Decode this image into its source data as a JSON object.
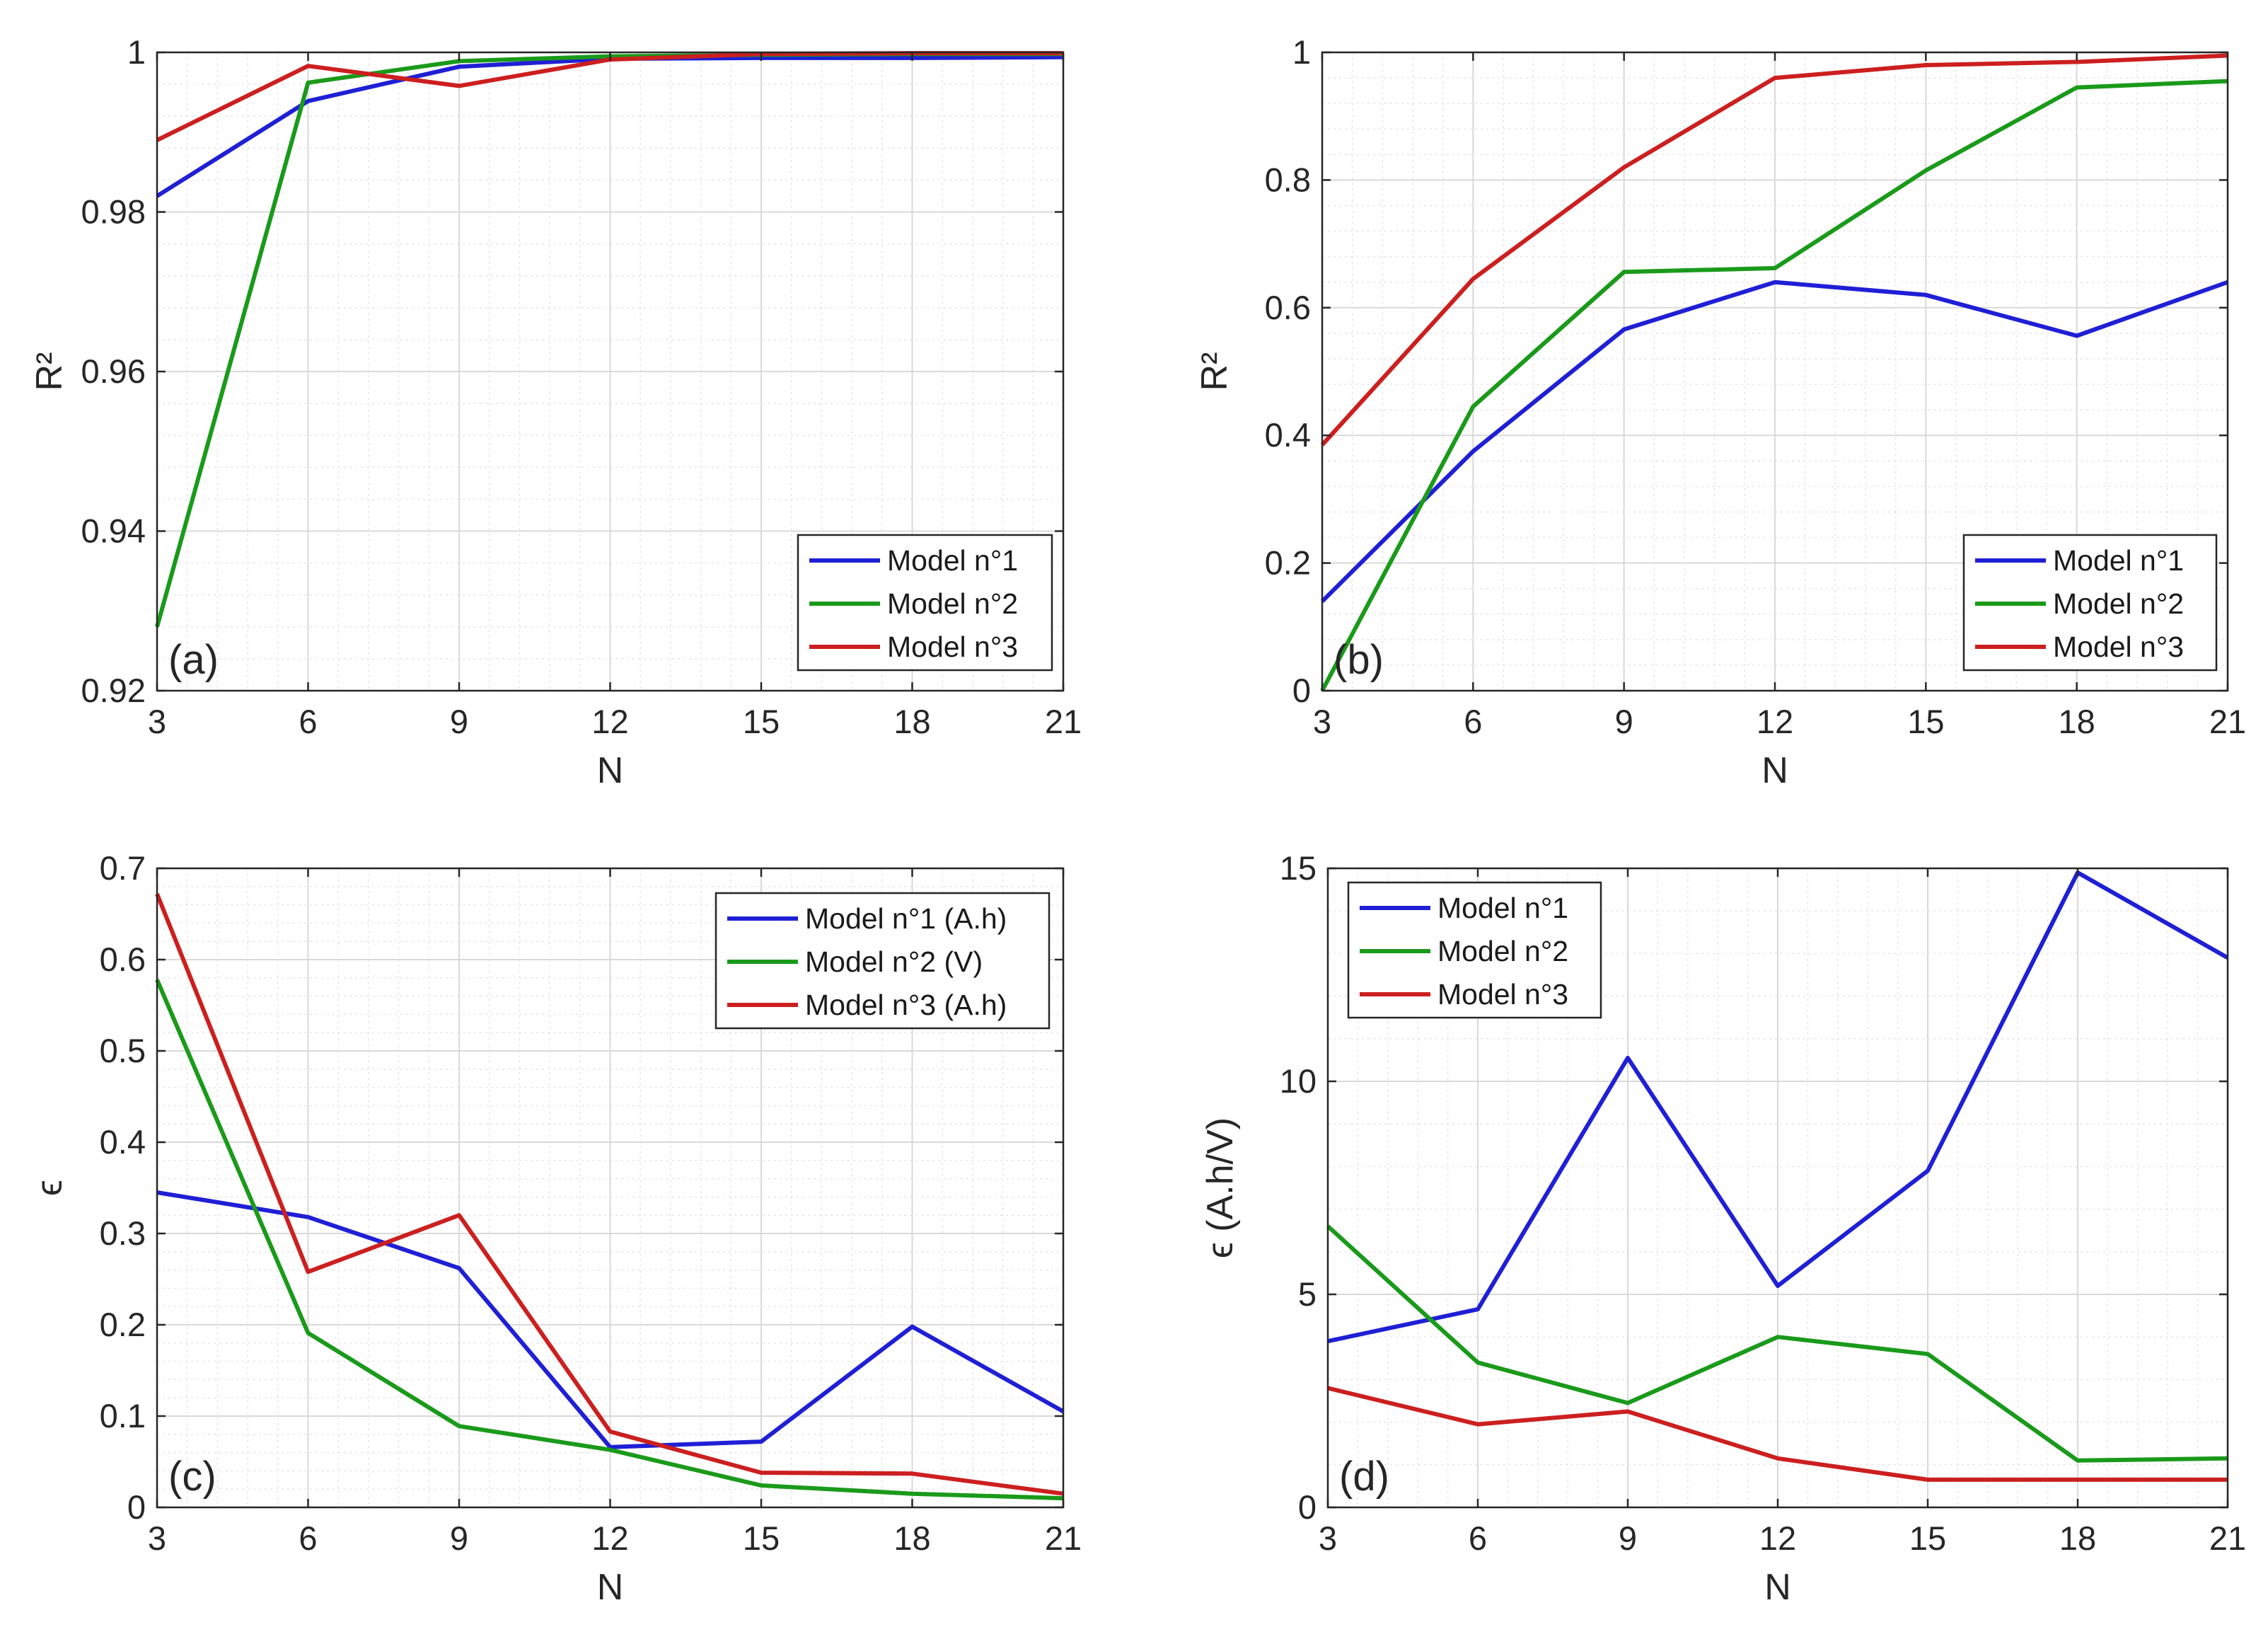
{
  "chart_data": [
    {
      "id": "a",
      "type": "line",
      "panel_label": "(a)",
      "xlabel": "N",
      "ylabel": "R²",
      "xlim": [
        3,
        21
      ],
      "ylim": [
        0.92,
        1.0
      ],
      "xticks": [
        3,
        6,
        9,
        12,
        15,
        18,
        21
      ],
      "xtick_labels": [
        "3",
        "6",
        "9",
        "12",
        "15",
        "18",
        "21"
      ],
      "yticks": [
        0.92,
        0.94,
        0.96,
        0.98,
        1.0
      ],
      "ytick_labels": [
        "0.92",
        "0.94",
        "0.96",
        "0.98",
        "1"
      ],
      "grid": true,
      "minor_grid": true,
      "legend_position": "bottom-right",
      "x": [
        3,
        6,
        9,
        12,
        15,
        18,
        21
      ],
      "series": [
        {
          "name": "Model n°1",
          "color": "#1f1fd6",
          "values": [
            0.982,
            0.9939,
            0.9982,
            0.9992,
            0.9993,
            0.9993,
            0.9994
          ]
        },
        {
          "name": "Model n°2",
          "color": "#1a9a1a",
          "values": [
            0.928,
            0.9962,
            0.9989,
            0.9995,
            0.9997,
            0.9998,
            0.9998
          ]
        },
        {
          "name": "Model n°3",
          "color": "#cc1f1f",
          "values": [
            0.989,
            0.9983,
            0.9958,
            0.9991,
            0.9998,
            0.9999,
            0.9999
          ]
        }
      ]
    },
    {
      "id": "b",
      "type": "line",
      "panel_label": "(b)",
      "xlabel": "N",
      "ylabel": "R²",
      "xlim": [
        3,
        21
      ],
      "ylim": [
        0,
        1
      ],
      "xticks": [
        3,
        6,
        9,
        12,
        15,
        18,
        21
      ],
      "xtick_labels": [
        "3",
        "6",
        "9",
        "12",
        "15",
        "18",
        "21"
      ],
      "yticks": [
        0,
        0.2,
        0.4,
        0.6,
        0.8,
        1
      ],
      "ytick_labels": [
        "0",
        "0.2",
        "0.4",
        "0.6",
        "0.8",
        "1"
      ],
      "grid": true,
      "minor_grid": true,
      "legend_position": "bottom-right",
      "x": [
        3,
        6,
        9,
        12,
        15,
        18,
        21
      ],
      "series": [
        {
          "name": "Model n°1",
          "color": "#1f1fd6",
          "values": [
            0.14,
            0.375,
            0.566,
            0.64,
            0.62,
            0.556,
            0.64
          ]
        },
        {
          "name": "Model n°2",
          "color": "#1a9a1a",
          "values": [
            0.0,
            0.445,
            0.656,
            0.662,
            0.815,
            0.945,
            0.955
          ]
        },
        {
          "name": "Model n°3",
          "color": "#cc1f1f",
          "values": [
            0.385,
            0.645,
            0.82,
            0.96,
            0.98,
            0.985,
            0.995
          ]
        }
      ]
    },
    {
      "id": "c",
      "type": "line",
      "panel_label": "(c)",
      "xlabel": "N",
      "ylabel": "ϵ",
      "xlim": [
        3,
        21
      ],
      "ylim": [
        0,
        0.7
      ],
      "xticks": [
        3,
        6,
        9,
        12,
        15,
        18,
        21
      ],
      "xtick_labels": [
        "3",
        "6",
        "9",
        "12",
        "15",
        "18",
        "21"
      ],
      "yticks": [
        0,
        0.1,
        0.2,
        0.3,
        0.4,
        0.5,
        0.6,
        0.7
      ],
      "ytick_labels": [
        "0",
        "0.1",
        "0.2",
        "0.3",
        "0.4",
        "0.5",
        "0.6",
        "0.7"
      ],
      "grid": true,
      "minor_grid": true,
      "legend_position": "top-right",
      "x": [
        3,
        6,
        9,
        12,
        15,
        18,
        21
      ],
      "series": [
        {
          "name": "Model n°1 (A.h)",
          "color": "#1f1fd6",
          "values": [
            0.345,
            0.318,
            0.262,
            0.066,
            0.072,
            0.198,
            0.105
          ]
        },
        {
          "name": "Model n°2 (V)",
          "color": "#1a9a1a",
          "values": [
            0.578,
            0.191,
            0.089,
            0.063,
            0.024,
            0.015,
            0.01
          ]
        },
        {
          "name": "Model n°3 (A.h)",
          "color": "#cc1f1f",
          "values": [
            0.672,
            0.258,
            0.32,
            0.083,
            0.038,
            0.037,
            0.015
          ]
        }
      ]
    },
    {
      "id": "d",
      "type": "line",
      "panel_label": "(d)",
      "xlabel": "N",
      "ylabel": "ϵ (A.h/V)",
      "xlim": [
        3,
        21
      ],
      "ylim": [
        0,
        15
      ],
      "xticks": [
        3,
        6,
        9,
        12,
        15,
        18,
        21
      ],
      "xtick_labels": [
        "3",
        "6",
        "9",
        "12",
        "15",
        "18",
        "21"
      ],
      "yticks": [
        0,
        5,
        10,
        15
      ],
      "ytick_labels": [
        "0",
        "5",
        "10",
        "15"
      ],
      "grid": true,
      "minor_grid": true,
      "legend_position": "top-left",
      "x": [
        3,
        6,
        9,
        12,
        15,
        18,
        21
      ],
      "series": [
        {
          "name": "Model n°1",
          "color": "#1f1fd6",
          "values": [
            3.9,
            4.65,
            10.55,
            5.2,
            7.9,
            14.9,
            12.9
          ]
        },
        {
          "name": "Model n°2",
          "color": "#1a9a1a",
          "values": [
            6.6,
            3.4,
            2.45,
            4.0,
            3.6,
            1.1,
            1.15
          ]
        },
        {
          "name": "Model n°3",
          "color": "#cc1f1f",
          "values": [
            2.8,
            1.95,
            2.25,
            1.15,
            0.65,
            0.65,
            0.65
          ]
        }
      ]
    }
  ]
}
